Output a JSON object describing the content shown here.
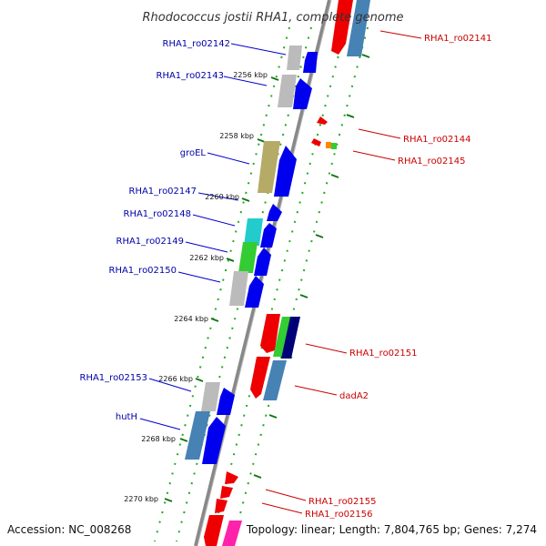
{
  "title": "Rhodococcus jostii RHA1, complete genome",
  "footer": {
    "accession": "Accession: NC_008268",
    "summary": "Topology: linear; Length: 7,804,765 bp; Genes: 7,274"
  },
  "colors": {
    "backbone": "#888888",
    "tick": "#22aa22",
    "blue_label": "#0000aa",
    "red_label": "#cc0000"
  },
  "kbp_ticks": [
    {
      "label": "2256 kbp"
    },
    {
      "label": "2258 kbp"
    },
    {
      "label": "2260 kbp"
    },
    {
      "label": "2262 kbp"
    },
    {
      "label": "2264 kbp"
    },
    {
      "label": "2266 kbp"
    },
    {
      "label": "2268 kbp"
    },
    {
      "label": "2270 kbp"
    }
  ],
  "genes_left": [
    {
      "label": "RHA1_ro02142"
    },
    {
      "label": "RHA1_ro02143"
    },
    {
      "label": "groEL"
    },
    {
      "label": "RHA1_ro02147"
    },
    {
      "label": "RHA1_ro02148"
    },
    {
      "label": "RHA1_ro02149"
    },
    {
      "label": "RHA1_ro02150"
    },
    {
      "label": "RHA1_ro02153"
    },
    {
      "label": "hutH"
    }
  ],
  "genes_right": [
    {
      "label": "RHA1_ro02141"
    },
    {
      "label": "RHA1_ro02144"
    },
    {
      "label": "RHA1_ro02145"
    },
    {
      "label": "RHA1_ro02151"
    },
    {
      "label": "dadA2"
    },
    {
      "label": "RHA1_ro02155"
    },
    {
      "label": "RHA1_ro02156"
    }
  ]
}
